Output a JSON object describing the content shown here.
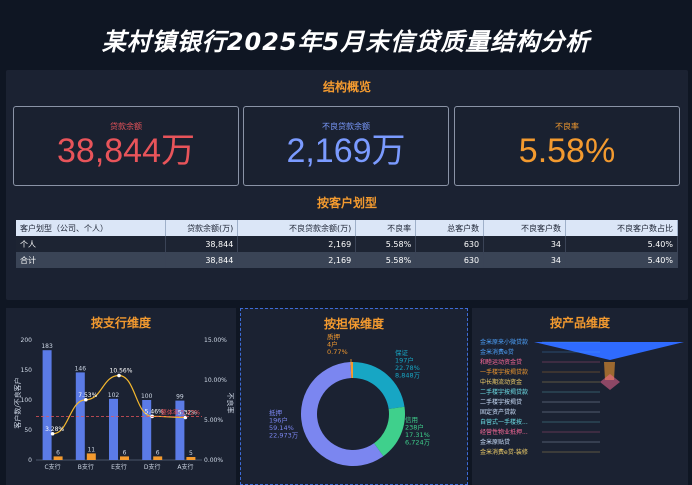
{
  "title": "某村镇银行2025年5月末信贷质量结构分析",
  "overview": {
    "heading": "结构概览",
    "kpis": [
      {
        "label": "贷款余额",
        "value": "38,844万",
        "color": "#e8545a"
      },
      {
        "label": "不良贷款余额",
        "value": "2,169万",
        "color": "#7b9bff"
      },
      {
        "label": "不良率",
        "value": "5.58%",
        "color": "#f39a2f"
      }
    ]
  },
  "customer": {
    "heading": "按客户划型",
    "columns": [
      "客户划型（公司、个人）",
      "贷款余额(万)",
      "不良贷款余额(万)",
      "不良率",
      "总客户数",
      "不良客户数",
      "不良客户数占比"
    ],
    "rows": [
      [
        "个人",
        "38,844",
        "2,169",
        "5.58%",
        "630",
        "34",
        "5.40%"
      ],
      [
        "合计",
        "38,844",
        "2,169",
        "5.58%",
        "630",
        "34",
        "5.40%"
      ]
    ]
  },
  "branch_panel": {
    "title": "按支行维度",
    "ylabel_left": "客户数/不良客户",
    "ylabel_right": "不良率",
    "avg_label": "整体率:5.42%"
  },
  "collateral_panel": {
    "title": "按担保维度"
  },
  "product_panel": {
    "title": "按产品维度",
    "items": [
      {
        "label": "金米原来小微贷款",
        "color": "#4ea4ff"
      },
      {
        "label": "金米消费e贷",
        "color": "#4ea4ff"
      },
      {
        "label": "和睦运动资金贷",
        "color": "#ff6b9a"
      },
      {
        "label": "一手楼宇按揭贷款",
        "color": "#f39a2f"
      },
      {
        "label": "中长期流动资金",
        "color": "#f5d36b"
      },
      {
        "label": "二手楼宇按揭贷款",
        "color": "#6ee0e8"
      },
      {
        "label": "二手楼宇按揭贷",
        "color": "#cfe3ff"
      },
      {
        "label": "固定资产贷款",
        "color": "#cfe3ff"
      },
      {
        "label": "自营式一手楼按...",
        "color": "#6ee0e8"
      },
      {
        "label": "经营性物业抵押...",
        "color": "#ff6b9a"
      },
      {
        "label": "金米原贴贷",
        "color": "#cfe3ff"
      },
      {
        "label": "金米消费e贷-装修",
        "color": "#f5d36b"
      }
    ]
  },
  "chart_data": [
    {
      "type": "bar",
      "title": "按支行维度",
      "categories": [
        "C支行",
        "B支行",
        "E支行",
        "D支行",
        "A支行"
      ],
      "series": [
        {
          "values": [
            183,
            146,
            102,
            100,
            99
          ],
          "color": "#5b7be6"
        },
        {
          "values": [
            6,
            11,
            6,
            6,
            5
          ],
          "color": "#f39a2f"
        },
        {
          "values": [
            3.28,
            7.53,
            10.56,
            5.46,
            5.32
          ],
          "color": "#f5b82e",
          "axis": "right",
          "kind": "line",
          "labels": [
            "3.28%",
            "7.53%",
            "10.56%",
            "5.46%",
            "5.32%"
          ]
        }
      ],
      "ylim": [
        0,
        200
      ],
      "yticks": [
        0,
        50,
        100,
        150,
        200
      ],
      "y2lim": [
        0,
        15
      ],
      "y2ticks": [
        "0.00%",
        "5.00%",
        "10.00%",
        "15.00%"
      ],
      "avg_line": 5.42,
      "ylabel": "客户数/不良客户",
      "y2label": "不良率"
    },
    {
      "type": "pie",
      "title": "按担保维度",
      "slices": [
        {
          "name": "保证",
          "count": "197户",
          "pct": "22.78%",
          "amount": "8,848万",
          "value": 22.78,
          "color": "#17a6c4"
        },
        {
          "name": "信用",
          "count": "238户",
          "pct": "17.31%",
          "amount": "6,724万",
          "value": 17.31,
          "color": "#3fd08c"
        },
        {
          "name": "抵押",
          "count": "196户",
          "pct": "59.14%",
          "amount": "22,973万",
          "value": 59.14,
          "color": "#7b86f0"
        },
        {
          "name": "质押",
          "count": "4户",
          "pct": "0.77%",
          "amount": "",
          "value": 0.77,
          "color": "#f39a2f"
        }
      ]
    }
  ]
}
